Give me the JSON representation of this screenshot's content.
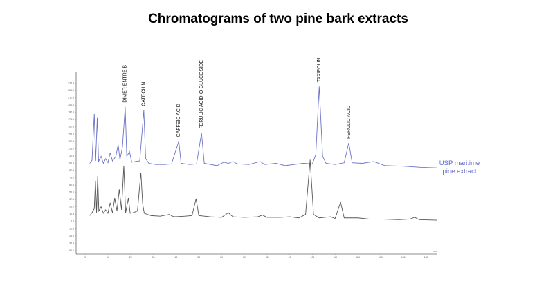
{
  "chart_data": {
    "type": "line",
    "title": "Chromatograms of two pine bark extracts",
    "x_label": "min",
    "xlim": [
      -4,
      155
    ],
    "xticks": [
      0,
      10,
      20,
      30,
      40,
      50,
      60,
      70,
      80,
      90,
      100,
      110,
      120,
      130,
      140,
      150
    ],
    "ylim": [
      -56,
      256
    ],
    "yticks": [
      {
        "value": -50,
        "label": "-50.0"
      },
      {
        "value": -37.5,
        "label": "-37.5"
      },
      {
        "value": -25,
        "label": "-25.0"
      },
      {
        "value": -12.5,
        "label": "-12.5"
      },
      {
        "value": 0,
        "label": "0.0"
      },
      {
        "value": 12.5,
        "label": "12.5"
      },
      {
        "value": 25,
        "label": "25.0"
      },
      {
        "value": 37.5,
        "label": "37.5"
      },
      {
        "value": 50,
        "label": "50.0"
      },
      {
        "value": 62.5,
        "label": "62.5"
      },
      {
        "value": 75,
        "label": "75.0"
      },
      {
        "value": 87.5,
        "label": "87.5"
      },
      {
        "value": 100,
        "label": "100.0"
      },
      {
        "value": 112.5,
        "label": "112.5"
      },
      {
        "value": 125,
        "label": "125.0"
      },
      {
        "value": 137.5,
        "label": "137.5"
      },
      {
        "value": 150,
        "label": "150.0"
      },
      {
        "value": 162.5,
        "label": "162.5"
      },
      {
        "value": 175,
        "label": "175.0"
      },
      {
        "value": 187.5,
        "label": "187.5"
      },
      {
        "value": 200,
        "label": "200.0"
      },
      {
        "value": 212.5,
        "label": "212.5"
      },
      {
        "value": 225,
        "label": "225.0"
      },
      {
        "value": 237.5,
        "label": "237.5"
      }
    ],
    "annotations": [
      {
        "text": "DIMER ENTRE B",
        "x": 17.6
      },
      {
        "text": "CATECHIN",
        "x": 25.8
      },
      {
        "text": "CAFFEIC ACID",
        "x": 41.2
      },
      {
        "text": "FERULIC ACID-O-GLUCOSIDE",
        "x": 51.2
      },
      {
        "text": "TAXIFOLIN",
        "x": 103
      },
      {
        "text": "FERULIC ACID",
        "x": 116
      }
    ],
    "series": [
      {
        "name": "USP maritime pine extract",
        "color": "#6b73c9",
        "x": [
          2,
          3,
          4,
          4.6,
          5.3,
          5.9,
          7,
          8,
          9,
          10,
          11,
          12,
          13.5,
          14.5,
          15.3,
          16.4,
          17.6,
          18.3,
          19.5,
          20.5,
          22,
          24,
          25.8,
          26.6,
          28,
          31,
          35,
          38,
          41.2,
          42.2,
          46,
          49,
          51.2,
          52.4,
          58,
          61,
          63,
          65,
          67,
          72,
          77,
          79,
          84,
          88,
          92,
          96,
          100,
          101.5,
          103,
          104.5,
          106,
          110,
          114,
          116,
          117.5,
          122,
          127,
          132,
          140,
          148,
          155
        ],
        "values": [
          100,
          105,
          185,
          104,
          178,
          103,
          112,
          100,
          108,
          101,
          118,
          104,
          112,
          132,
          106,
          128,
          197,
          112,
          120,
          102,
          103,
          104,
          191,
          108,
          100,
          98,
          98,
          99,
          138,
          100,
          98,
          99,
          152,
          100,
          96,
          102,
          100,
          103,
          99,
          98,
          103,
          98,
          100,
          96,
          98,
          100,
          99,
          115,
          232,
          112,
          100,
          98,
          101,
          135,
          101,
          100,
          103,
          96,
          95,
          93,
          92
        ]
      },
      {
        "color": "#555555",
        "x": [
          2,
          3,
          4,
          4.5,
          5,
          5.5,
          6,
          7,
          8,
          9,
          10,
          11,
          12,
          13,
          14,
          15,
          16,
          17,
          17.8,
          19,
          19.8,
          21,
          23,
          24.5,
          25.3,
          26,
          29,
          33,
          37,
          39,
          44,
          47,
          48.8,
          50,
          55,
          60,
          63,
          65,
          70,
          76,
          78,
          80,
          86,
          90,
          94,
          97,
          99,
          100.5,
          103,
          108,
          110,
          112.4,
          114,
          120,
          125,
          130,
          138,
          143,
          145,
          147,
          155
        ],
        "values": [
          10,
          15,
          22,
          70,
          15,
          78,
          18,
          25,
          14,
          20,
          14,
          32,
          15,
          40,
          18,
          55,
          20,
          96,
          15,
          40,
          14,
          15,
          18,
          84,
          30,
          14,
          10,
          9,
          12,
          8,
          9,
          10,
          39,
          10,
          8,
          7,
          15,
          8,
          7,
          8,
          11,
          7,
          7,
          8,
          6,
          12,
          106,
          12,
          6,
          8,
          5,
          33,
          6,
          6,
          4,
          4,
          3,
          4,
          7,
          3,
          2
        ]
      }
    ]
  }
}
